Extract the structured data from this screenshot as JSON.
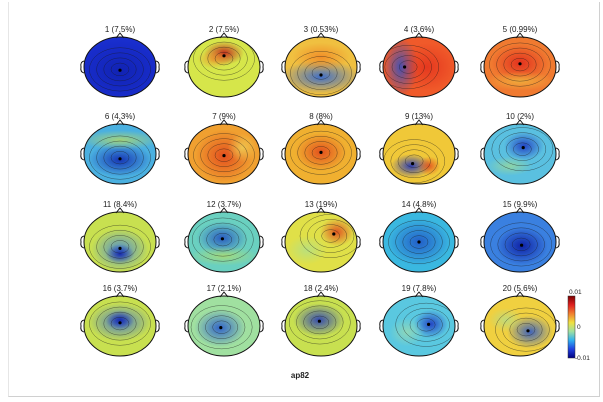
{
  "figure": {
    "title": "ap82",
    "maps": [
      {
        "label": "1 (7.5%)",
        "base": "#1a2fd0",
        "blobs": [
          {
            "dx": 0,
            "dy": 4,
            "rx": 0.8,
            "ry": 0.7,
            "c": "#0a1aa0",
            "o": 0.6
          }
        ]
      },
      {
        "label": "2 (7.5%)",
        "base": "#d6e64a",
        "blobs": [
          {
            "dx": 0,
            "dy": -14,
            "rx": 0.35,
            "ry": 0.25,
            "c": "#c01818",
            "o": 0.9
          },
          {
            "dx": -10,
            "dy": -8,
            "rx": 0.3,
            "ry": 0.2,
            "c": "#f08a2a",
            "o": 0.7
          }
        ]
      },
      {
        "label": "3 (0.53%)",
        "base": "#f0c040",
        "blobs": [
          {
            "dx": 0,
            "dy": 10,
            "rx": 0.7,
            "ry": 0.35,
            "c": "#2060e0",
            "o": 0.85
          },
          {
            "dx": 0,
            "dy": -10,
            "rx": 0.5,
            "ry": 0.3,
            "c": "#f07a20",
            "o": 0.7
          }
        ]
      },
      {
        "label": "4 (3.6%)",
        "base": "#f05a2a",
        "blobs": [
          {
            "dx": -18,
            "dy": 0,
            "rx": 0.3,
            "ry": 0.6,
            "c": "#2050d0",
            "o": 0.85
          },
          {
            "dx": 8,
            "dy": 0,
            "rx": 0.5,
            "ry": 0.5,
            "c": "#e02a1a",
            "o": 0.7
          }
        ]
      },
      {
        "label": "5 (0.99%)",
        "base": "#f07a30",
        "blobs": [
          {
            "dx": 0,
            "dy": -4,
            "rx": 0.5,
            "ry": 0.4,
            "c": "#e0201a",
            "o": 0.8
          },
          {
            "dx": 0,
            "dy": 14,
            "rx": 0.6,
            "ry": 0.2,
            "c": "#f0c040",
            "o": 0.7
          }
        ]
      },
      {
        "label": "6 (4.3%)",
        "base": "#4ab0e0",
        "blobs": [
          {
            "dx": 0,
            "dy": 6,
            "rx": 0.55,
            "ry": 0.35,
            "c": "#1028b0",
            "o": 0.9
          },
          {
            "dx": 0,
            "dy": -14,
            "rx": 0.7,
            "ry": 0.2,
            "c": "#c8e050",
            "o": 0.7
          }
        ]
      },
      {
        "label": "7 (9%)",
        "base": "#f0a030",
        "blobs": [
          {
            "dx": 0,
            "dy": 2,
            "rx": 0.5,
            "ry": 0.55,
            "c": "#e0401a",
            "o": 0.85
          },
          {
            "dx": 18,
            "dy": -6,
            "rx": 0.25,
            "ry": 0.3,
            "c": "#f0e060",
            "o": 0.7
          }
        ]
      },
      {
        "label": "8 (8%)",
        "base": "#f0b030",
        "blobs": [
          {
            "dx": 0,
            "dy": -2,
            "rx": 0.45,
            "ry": 0.4,
            "c": "#e0401a",
            "o": 0.85
          }
        ]
      },
      {
        "label": "9 (13%)",
        "base": "#f0c838",
        "blobs": [
          {
            "dx": -8,
            "dy": 12,
            "rx": 0.35,
            "ry": 0.25,
            "c": "#1a30c0",
            "o": 0.9
          },
          {
            "dx": 10,
            "dy": 12,
            "rx": 0.2,
            "ry": 0.2,
            "c": "#e0401a",
            "o": 0.8
          }
        ]
      },
      {
        "label": "10 (2%)",
        "base": "#5ac0e0",
        "blobs": [
          {
            "dx": 4,
            "dy": -8,
            "rx": 0.35,
            "ry": 0.3,
            "c": "#1a30c0",
            "o": 0.85
          },
          {
            "dx": -10,
            "dy": 12,
            "rx": 0.4,
            "ry": 0.2,
            "c": "#b0e080",
            "o": 0.6
          }
        ]
      },
      {
        "label": "11 (8.4%)",
        "base": "#c8e050",
        "blobs": [
          {
            "dx": 0,
            "dy": 8,
            "rx": 0.5,
            "ry": 0.45,
            "c": "#3a80e0",
            "o": 0.85
          },
          {
            "dx": 0,
            "dy": 12,
            "rx": 0.25,
            "ry": 0.2,
            "c": "#1020b0",
            "o": 0.9
          }
        ]
      },
      {
        "label": "12 (3.7%)",
        "base": "#6ad0c0",
        "blobs": [
          {
            "dx": -2,
            "dy": -4,
            "rx": 0.45,
            "ry": 0.35,
            "c": "#1a40c0",
            "o": 0.8
          },
          {
            "dx": 0,
            "dy": 14,
            "rx": 0.6,
            "ry": 0.2,
            "c": "#c8e050",
            "o": 0.6
          }
        ]
      },
      {
        "label": "13 (19%)",
        "base": "#e0e048",
        "blobs": [
          {
            "dx": 16,
            "dy": -10,
            "rx": 0.3,
            "ry": 0.3,
            "c": "#e0401a",
            "o": 0.85
          },
          {
            "dx": -14,
            "dy": 8,
            "rx": 0.35,
            "ry": 0.3,
            "c": "#a0e0a0",
            "o": 0.6
          }
        ]
      },
      {
        "label": "14 (4.8%)",
        "base": "#3ab8e0",
        "blobs": [
          {
            "dx": 0,
            "dy": 0,
            "rx": 0.55,
            "ry": 0.5,
            "c": "#1a40c0",
            "o": 0.75
          }
        ]
      },
      {
        "label": "15 (9.9%)",
        "base": "#3a80e0",
        "blobs": [
          {
            "dx": 2,
            "dy": 4,
            "rx": 0.45,
            "ry": 0.4,
            "c": "#0a18a0",
            "o": 0.9
          }
        ]
      },
      {
        "label": "16 (3.7%)",
        "base": "#c8e050",
        "blobs": [
          {
            "dx": 0,
            "dy": -4,
            "rx": 0.55,
            "ry": 0.4,
            "c": "#2a60e0",
            "o": 0.8
          },
          {
            "dx": 0,
            "dy": -6,
            "rx": 0.25,
            "ry": 0.2,
            "c": "#1020b0",
            "o": 0.9
          }
        ]
      },
      {
        "label": "17 (2.1%)",
        "base": "#a0e0a0",
        "blobs": [
          {
            "dx": -4,
            "dy": 2,
            "rx": 0.45,
            "ry": 0.4,
            "c": "#2050d0",
            "o": 0.85
          }
        ]
      },
      {
        "label": "18 (2.4%)",
        "base": "#c8e050",
        "blobs": [
          {
            "dx": -2,
            "dy": -6,
            "rx": 0.45,
            "ry": 0.35,
            "c": "#1a30c0",
            "o": 0.85
          }
        ]
      },
      {
        "label": "19 (7.8%)",
        "base": "#5ac8e0",
        "blobs": [
          {
            "dx": 12,
            "dy": -2,
            "rx": 0.3,
            "ry": 0.3,
            "c": "#1a30c0",
            "o": 0.85
          },
          {
            "dx": -12,
            "dy": 6,
            "rx": 0.3,
            "ry": 0.3,
            "c": "#b0e0a0",
            "o": 0.6
          }
        ]
      },
      {
        "label": "20 (5.6%)",
        "base": "#f0d040",
        "blobs": [
          {
            "dx": 10,
            "dy": 6,
            "rx": 0.4,
            "ry": 0.35,
            "c": "#2050d0",
            "o": 0.85
          },
          {
            "dx": -14,
            "dy": -6,
            "rx": 0.3,
            "ry": 0.25,
            "c": "#a0e0a0",
            "o": 0.6
          }
        ]
      }
    ],
    "colorbar": {
      "ticks": [
        "0.01",
        "0",
        "-0.01"
      ],
      "colors": [
        "#7a0000",
        "#e02020",
        "#f08030",
        "#f0e040",
        "#a0e0a0",
        "#30b0f0",
        "#2040e0",
        "#000080"
      ]
    }
  }
}
